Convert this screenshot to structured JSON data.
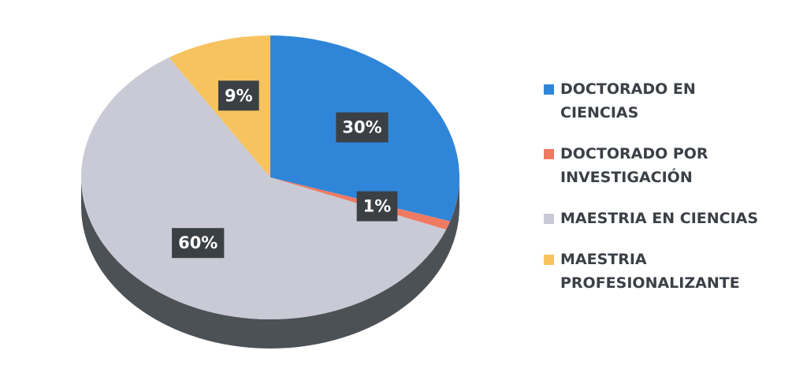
{
  "chart_data": {
    "type": "pie",
    "categories": [
      "DOCTORADO EN CIENCIAS",
      "DOCTORADO POR INVESTIGACIÓN",
      "MAESTRIA EN CIENCIAS",
      "MAESTRIA PROFESIONALIZANTE"
    ],
    "values": [
      30,
      1,
      60,
      9
    ],
    "value_labels": [
      "30%",
      "1%",
      "60%",
      "9%"
    ],
    "colors": [
      "#2f86d9",
      "#ef7a62",
      "#c9cad5",
      "#f6c35e"
    ],
    "legend": "right"
  }
}
